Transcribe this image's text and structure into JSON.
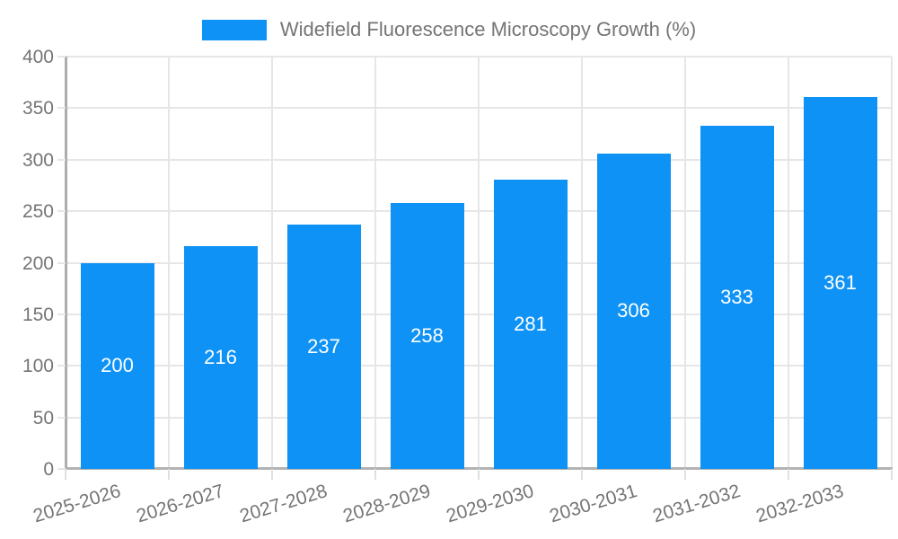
{
  "legend": {
    "label": "Widefield Fluorescence Microscopy Growth (%)"
  },
  "chart_data": {
    "type": "bar",
    "title": "Widefield Fluorescence Microscopy Growth (%)",
    "categories": [
      "2025-2026",
      "2026-2027",
      "2027-2028",
      "2028-2029",
      "2029-2030",
      "2030-2031",
      "2031-2032",
      "2032-2033"
    ],
    "values": [
      200,
      216,
      237,
      258,
      281,
      306,
      333,
      361
    ],
    "xlabel": "",
    "ylabel": "",
    "ylim": [
      0,
      400
    ],
    "y_ticks": [
      0,
      50,
      100,
      150,
      200,
      250,
      300,
      350,
      400
    ],
    "grid": true,
    "legend_position": "top",
    "colors": {
      "bar": "#0e92f5",
      "bar_value_label": "#ffffff",
      "axis_text": "#757575",
      "axis_line": "#b0b0b0",
      "gridline": "#e6e6e6",
      "background": "#ffffff"
    }
  }
}
